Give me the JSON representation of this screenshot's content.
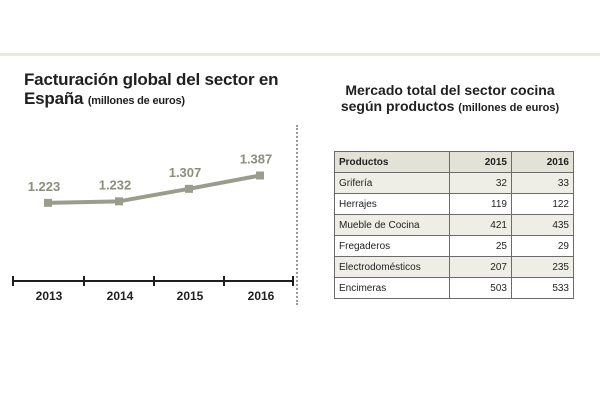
{
  "left": {
    "title": "Facturación global del sector en",
    "title2": "España",
    "subtitle": "(millones de euros)"
  },
  "right": {
    "title": "Mercado total del sector cocina",
    "title2": "según productos",
    "subtitle": "(millones de euros)"
  },
  "chart_data": [
    {
      "type": "line",
      "x": [
        "2013",
        "2014",
        "2015",
        "2016"
      ],
      "values": [
        1223,
        1232,
        1307,
        1387
      ],
      "data_labels": [
        "1.223",
        "1.232",
        "1.307",
        "1.387"
      ],
      "color": "#9b9d8c",
      "label_color": "#8c8e7c",
      "ylim": [
        1150,
        1420
      ]
    },
    {
      "type": "table",
      "headers": [
        "Productos",
        "2015",
        "2016"
      ],
      "rows": [
        [
          "Grifería",
          "32",
          "33"
        ],
        [
          "Herrajes",
          "119",
          "122"
        ],
        [
          "Mueble de Cocina",
          "421",
          "435"
        ],
        [
          "Fregaderos",
          "25",
          "29"
        ],
        [
          "Electrodomésticos",
          "207",
          "235"
        ],
        [
          "Encimeras",
          "503",
          "533"
        ]
      ]
    }
  ]
}
